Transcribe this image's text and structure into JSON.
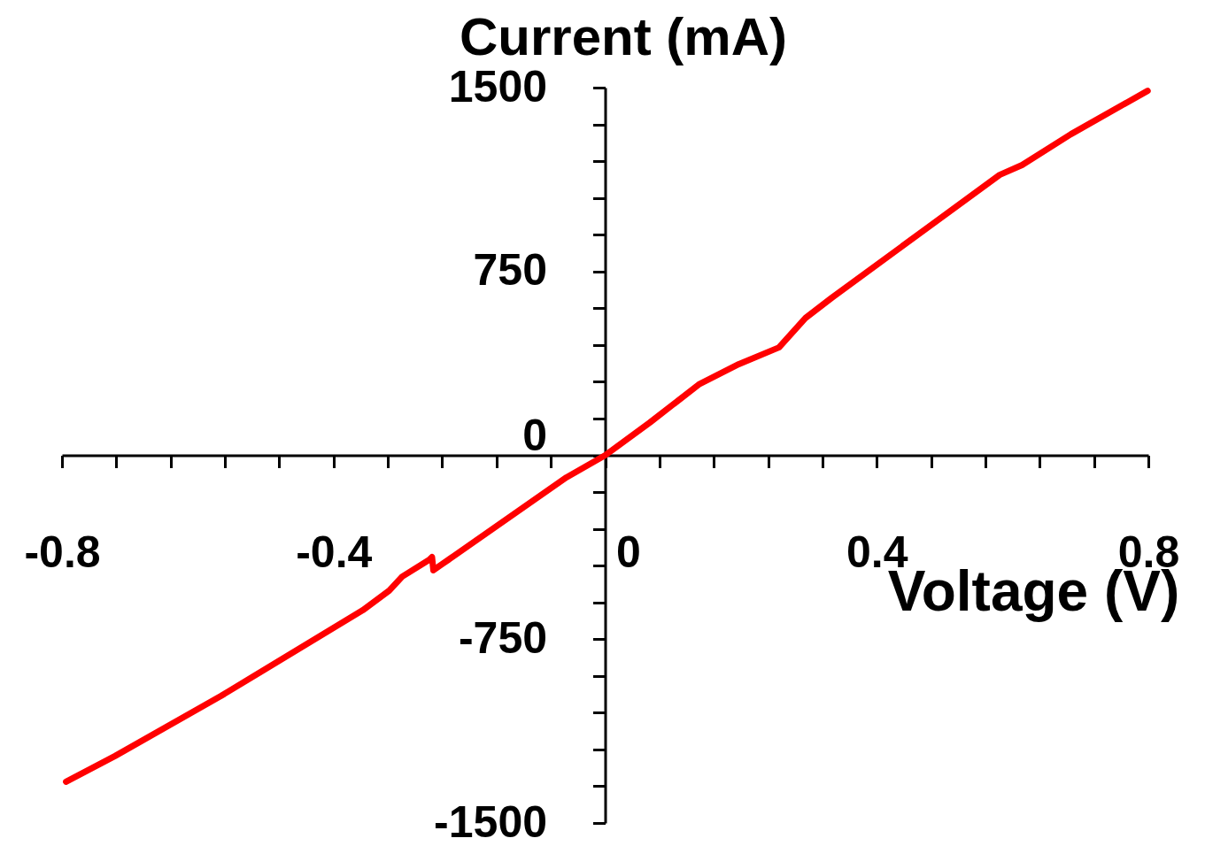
{
  "chart_data": {
    "type": "line",
    "xlabel": "Voltage (V)",
    "ylabel": "Current (mA)",
    "x": [
      -0.794,
      -0.722,
      -0.566,
      -0.357,
      -0.318,
      -0.299,
      -0.259,
      -0.255,
      -0.253,
      -0.24,
      -0.057,
      0,
      0.066,
      0.138,
      0.197,
      0.256,
      0.295,
      0.334,
      0.581,
      0.614,
      0.686,
      0.799
    ],
    "series": [
      {
        "color": "#ff0000",
        "values": [
          -1332,
          -1227,
          -982,
          -632,
          -552,
          -495,
          -426,
          -415,
          -469,
          -444,
          -90,
          0,
          134,
          289,
          372,
          440,
          560,
          643,
          1144,
          1184,
          1310,
          1487
        ]
      }
    ],
    "xlim": [
      -0.8,
      0.8
    ],
    "xticks": [
      -0.8,
      {
        "value": -0.72,
        "label": null
      },
      {
        "value": -0.64,
        "label": null
      },
      {
        "value": -0.56,
        "label": null
      },
      {
        "value": -0.48,
        "label": null
      },
      -0.4,
      {
        "value": -0.32,
        "label": null
      },
      {
        "value": -0.24,
        "label": null
      },
      {
        "value": -0.16,
        "label": null
      },
      {
        "value": -0.08,
        "label": null
      },
      0,
      {
        "value": 0.08,
        "label": null
      },
      {
        "value": 0.16,
        "label": null
      },
      {
        "value": 0.24,
        "label": null
      },
      {
        "value": 0.32,
        "label": null
      },
      0.4,
      {
        "value": 0.48,
        "label": null
      },
      {
        "value": 0.56,
        "label": null
      },
      {
        "value": 0.64,
        "label": null
      },
      {
        "value": 0.72,
        "label": null
      },
      0.8
    ],
    "ylim": [
      -1500,
      1500
    ],
    "yticks": [
      -1500,
      {
        "value": -1350,
        "label": null
      },
      {
        "value": -1200,
        "label": null
      },
      {
        "value": -1050,
        "label": null
      },
      {
        "value": -900,
        "label": null
      },
      -750,
      {
        "value": -600,
        "label": null
      },
      {
        "value": -450,
        "label": null
      },
      {
        "value": -300,
        "label": null
      },
      {
        "value": -150,
        "label": null
      },
      0,
      {
        "value": 150,
        "label": null
      },
      {
        "value": 300,
        "label": null
      },
      {
        "value": 450,
        "label": null
      },
      {
        "value": 600,
        "label": null
      },
      750,
      {
        "value": 900,
        "label": null
      },
      {
        "value": 1050,
        "label": null
      },
      {
        "value": 1200,
        "label": null
      },
      {
        "value": 1350,
        "label": null
      },
      1500
    ],
    "grid": false,
    "marker": "none",
    "line_style": "solid"
  }
}
